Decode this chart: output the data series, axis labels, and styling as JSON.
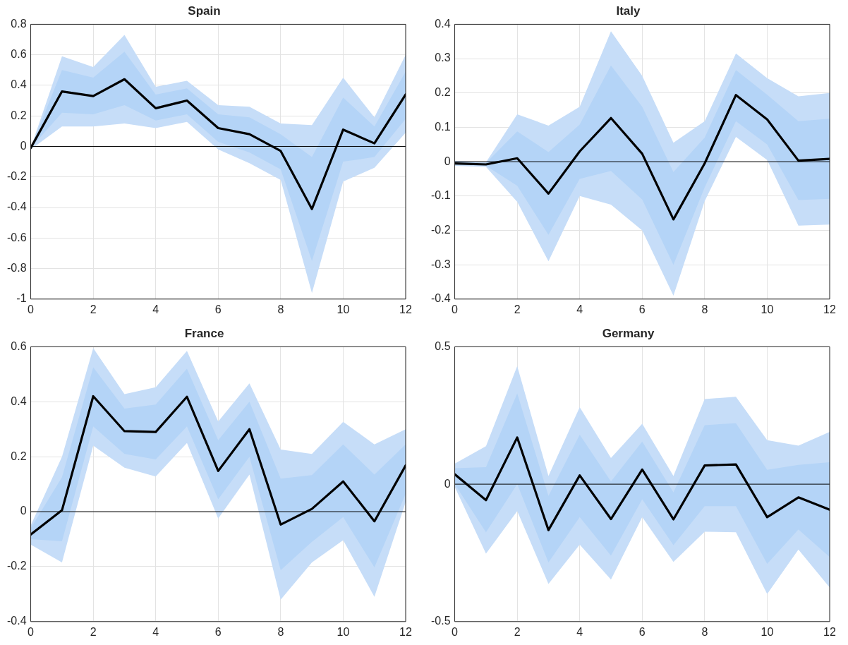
{
  "chart_data": [
    {
      "type": "line",
      "title": "Spain",
      "x": [
        0,
        1,
        2,
        3,
        4,
        5,
        6,
        7,
        8,
        9,
        10,
        11,
        12
      ],
      "xlim": [
        0,
        12
      ],
      "xticks": [
        0,
        2,
        4,
        6,
        8,
        10,
        12
      ],
      "ylim": [
        -1,
        0.8
      ],
      "yticks": [
        -1,
        -0.8,
        -0.6,
        -0.4,
        -0.2,
        0,
        0.2,
        0.4,
        0.6,
        0.8
      ],
      "grid": true,
      "legend": false,
      "ref_lines": [
        {
          "axis": "y",
          "value": 0,
          "color": "#000000"
        }
      ],
      "series": [
        {
          "type": "area",
          "color": "#c6ddf8",
          "values": [
            null,
            null,
            null,
            null,
            null,
            null,
            null,
            null,
            null,
            null,
            null,
            null,
            null
          ],
          "lower": [
            -0.02,
            0.13,
            0.13,
            0.15,
            0.12,
            0.16,
            -0.02,
            -0.11,
            -0.22,
            -0.96,
            -0.23,
            -0.14,
            0.09
          ],
          "upper": [
            -0.01,
            0.59,
            0.52,
            0.73,
            0.39,
            0.43,
            0.27,
            0.26,
            0.15,
            0.14,
            0.45,
            0.19,
            0.6
          ]
        },
        {
          "type": "area",
          "color": "#b4d4f7",
          "values": [
            null,
            null,
            null,
            null,
            null,
            null,
            null,
            null,
            null,
            null,
            null,
            null,
            null
          ],
          "lower": [
            -0.01,
            0.22,
            0.21,
            0.27,
            0.17,
            0.21,
            0.03,
            -0.04,
            -0.15,
            -0.75,
            -0.1,
            -0.07,
            0.18
          ],
          "upper": [
            -0.01,
            0.5,
            0.45,
            0.62,
            0.34,
            0.38,
            0.21,
            0.19,
            0.08,
            -0.07,
            0.32,
            0.13,
            0.49
          ]
        },
        {
          "type": "line",
          "color": "#000000",
          "values": [
            -0.01,
            0.36,
            0.33,
            0.44,
            0.25,
            0.3,
            0.12,
            0.08,
            -0.03,
            -0.41,
            0.11,
            0.02,
            0.34
          ]
        }
      ]
    },
    {
      "type": "line",
      "title": "Italy",
      "x": [
        0,
        1,
        2,
        3,
        4,
        5,
        6,
        7,
        8,
        9,
        10,
        11,
        12
      ],
      "xlim": [
        0,
        12
      ],
      "xticks": [
        0,
        2,
        4,
        6,
        8,
        10,
        12
      ],
      "ylim": [
        -0.4,
        0.4
      ],
      "yticks": [
        -0.4,
        -0.3,
        -0.2,
        -0.1,
        0,
        0.1,
        0.2,
        0.3,
        0.4
      ],
      "grid": true,
      "legend": false,
      "ref_lines": [
        {
          "axis": "y",
          "value": 0,
          "color": "#000000"
        }
      ],
      "series": [
        {
          "type": "area",
          "color": "#c6ddf8",
          "values": [
            null,
            null,
            null,
            null,
            null,
            null,
            null,
            null,
            null,
            null,
            null,
            null,
            null
          ],
          "lower": [
            -0.012,
            -0.015,
            -0.117,
            -0.29,
            -0.1,
            -0.125,
            -0.2,
            -0.39,
            -0.115,
            0.072,
            0.005,
            -0.186,
            -0.183
          ],
          "upper": [
            0.003,
            -0.002,
            0.138,
            0.105,
            0.16,
            0.38,
            0.25,
            0.055,
            0.118,
            0.315,
            0.243,
            0.19,
            0.2
          ]
        },
        {
          "type": "area",
          "color": "#b4d4f7",
          "values": [
            null,
            null,
            null,
            null,
            null,
            null,
            null,
            null,
            null,
            null,
            null,
            null,
            null
          ],
          "lower": [
            -0.008,
            -0.012,
            -0.07,
            -0.213,
            -0.05,
            -0.027,
            -0.11,
            -0.3,
            -0.075,
            0.118,
            0.05,
            -0.112,
            -0.108
          ],
          "upper": [
            0,
            -0.004,
            0.088,
            0.028,
            0.108,
            0.28,
            0.16,
            -0.03,
            0.07,
            0.267,
            0.195,
            0.118,
            0.125
          ]
        },
        {
          "type": "line",
          "color": "#000000",
          "values": [
            -0.005,
            -0.008,
            0.01,
            -0.093,
            0.03,
            0.127,
            0.023,
            -0.168,
            -0.005,
            0.194,
            0.123,
            0.003,
            0.008
          ]
        }
      ]
    },
    {
      "type": "line",
      "title": "France",
      "x": [
        0,
        1,
        2,
        3,
        4,
        5,
        6,
        7,
        8,
        9,
        10,
        11,
        12
      ],
      "xlim": [
        0,
        12
      ],
      "xticks": [
        0,
        2,
        4,
        6,
        8,
        10,
        12
      ],
      "ylim": [
        -0.4,
        0.6
      ],
      "yticks": [
        -0.4,
        -0.2,
        0,
        0.2,
        0.4,
        0.6
      ],
      "grid": true,
      "legend": false,
      "ref_lines": [
        {
          "axis": "y",
          "value": 0,
          "color": "#000000"
        }
      ],
      "series": [
        {
          "type": "area",
          "color": "#c6ddf8",
          "values": [
            null,
            null,
            null,
            null,
            null,
            null,
            null,
            null,
            null,
            null,
            null,
            null,
            null
          ],
          "lower": [
            -0.12,
            -0.185,
            0.24,
            0.16,
            0.128,
            0.25,
            -0.025,
            0.135,
            -0.32,
            -0.185,
            -0.104,
            -0.31,
            0.035
          ],
          "upper": [
            -0.05,
            0.2,
            0.595,
            0.428,
            0.453,
            0.585,
            0.328,
            0.467,
            0.226,
            0.21,
            0.327,
            0.245,
            0.3
          ]
        },
        {
          "type": "area",
          "color": "#b4d4f7",
          "values": [
            null,
            null,
            null,
            null,
            null,
            null,
            null,
            null,
            null,
            null,
            null,
            null,
            null
          ],
          "lower": [
            -0.1,
            -0.108,
            0.31,
            0.21,
            0.19,
            0.31,
            0.045,
            0.2,
            -0.213,
            -0.11,
            -0.02,
            -0.203,
            0.065
          ],
          "upper": [
            -0.06,
            0.125,
            0.525,
            0.375,
            0.39,
            0.52,
            0.26,
            0.4,
            0.12,
            0.133,
            0.245,
            0.135,
            0.245
          ]
        },
        {
          "type": "line",
          "color": "#000000",
          "values": [
            -0.083,
            0.005,
            0.42,
            0.293,
            0.29,
            0.418,
            0.148,
            0.3,
            -0.047,
            0.01,
            0.11,
            -0.035,
            0.168
          ]
        }
      ]
    },
    {
      "type": "line",
      "title": "Germany",
      "x": [
        0,
        1,
        2,
        3,
        4,
        5,
        6,
        7,
        8,
        9,
        10,
        11,
        12
      ],
      "xlim": [
        0,
        12
      ],
      "xticks": [
        0,
        2,
        4,
        6,
        8,
        10,
        12
      ],
      "ylim": [
        -0.5,
        0.5
      ],
      "yticks": [
        -0.5,
        0,
        0.5
      ],
      "grid": true,
      "legend": false,
      "ref_lines": [
        {
          "axis": "y",
          "value": 0,
          "color": "#000000"
        }
      ],
      "series": [
        {
          "type": "area",
          "color": "#c6ddf8",
          "values": [
            null,
            null,
            null,
            null,
            null,
            null,
            null,
            null,
            null,
            null,
            null,
            null,
            null
          ],
          "lower": [
            -0.01,
            -0.253,
            -0.098,
            -0.363,
            -0.22,
            -0.347,
            -0.12,
            -0.283,
            -0.173,
            -0.175,
            -0.4,
            -0.238,
            -0.376
          ],
          "upper": [
            0.075,
            0.138,
            0.43,
            0.03,
            0.28,
            0.095,
            0.22,
            0.03,
            0.31,
            0.318,
            0.16,
            0.14,
            0.19
          ]
        },
        {
          "type": "area",
          "color": "#b4d4f7",
          "values": [
            null,
            null,
            null,
            null,
            null,
            null,
            null,
            null,
            null,
            null,
            null,
            null,
            null
          ],
          "lower": [
            0,
            -0.175,
            0,
            -0.285,
            -0.12,
            -0.26,
            -0.055,
            -0.222,
            -0.08,
            -0.08,
            -0.29,
            -0.165,
            -0.265
          ],
          "upper": [
            0.058,
            0.062,
            0.33,
            -0.043,
            0.18,
            0.01,
            0.155,
            -0.03,
            0.215,
            0.222,
            0.052,
            0.07,
            0.08
          ]
        },
        {
          "type": "line",
          "color": "#000000",
          "values": [
            0.036,
            -0.058,
            0.17,
            -0.167,
            0.032,
            -0.127,
            0.053,
            -0.128,
            0.068,
            0.072,
            -0.12,
            -0.048,
            -0.093
          ]
        }
      ]
    }
  ]
}
